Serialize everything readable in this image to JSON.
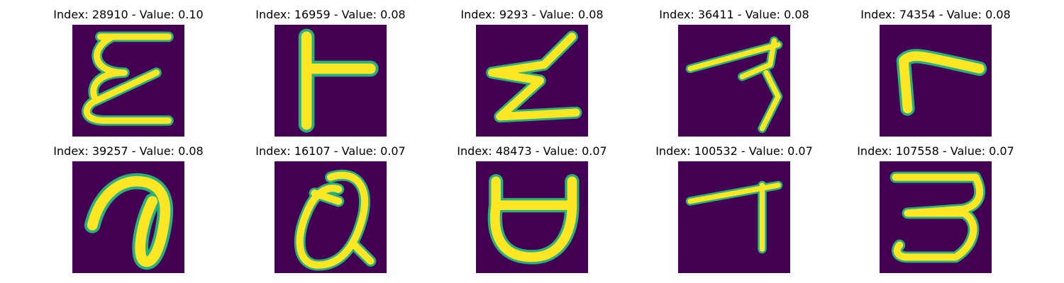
{
  "figure": {
    "panels": [
      {
        "title": "Index: 28910 - Value: 0.10",
        "glyph": "curly-e-symbol"
      },
      {
        "title": "Index: 16959 - Value: 0.08",
        "glyph": "t-sideways-symbol"
      },
      {
        "title": "Index: 9293 - Value: 0.08",
        "glyph": "zigzag-z-symbol"
      },
      {
        "title": "Index: 36411 - Value: 0.08",
        "glyph": "hook-seven-symbol"
      },
      {
        "title": "Index: 74354 - Value: 0.08",
        "glyph": "r-shaped-symbol"
      },
      {
        "title": "Index: 39257 - Value: 0.08",
        "glyph": "loop-a-symbol"
      },
      {
        "title": "Index: 16107 - Value: 0.07",
        "glyph": "at-sign-symbol"
      },
      {
        "title": "Index: 48473 - Value: 0.07",
        "glyph": "cup-symbol"
      },
      {
        "title": "Index: 100532 - Value: 0.07",
        "glyph": "tee-symbol"
      },
      {
        "title": "Index: 107558 - Value: 0.07",
        "glyph": "three-symbol"
      }
    ],
    "colors": {
      "background": "#440154",
      "stroke_core": "#fde725",
      "stroke_edge": "#2ab07f"
    }
  }
}
